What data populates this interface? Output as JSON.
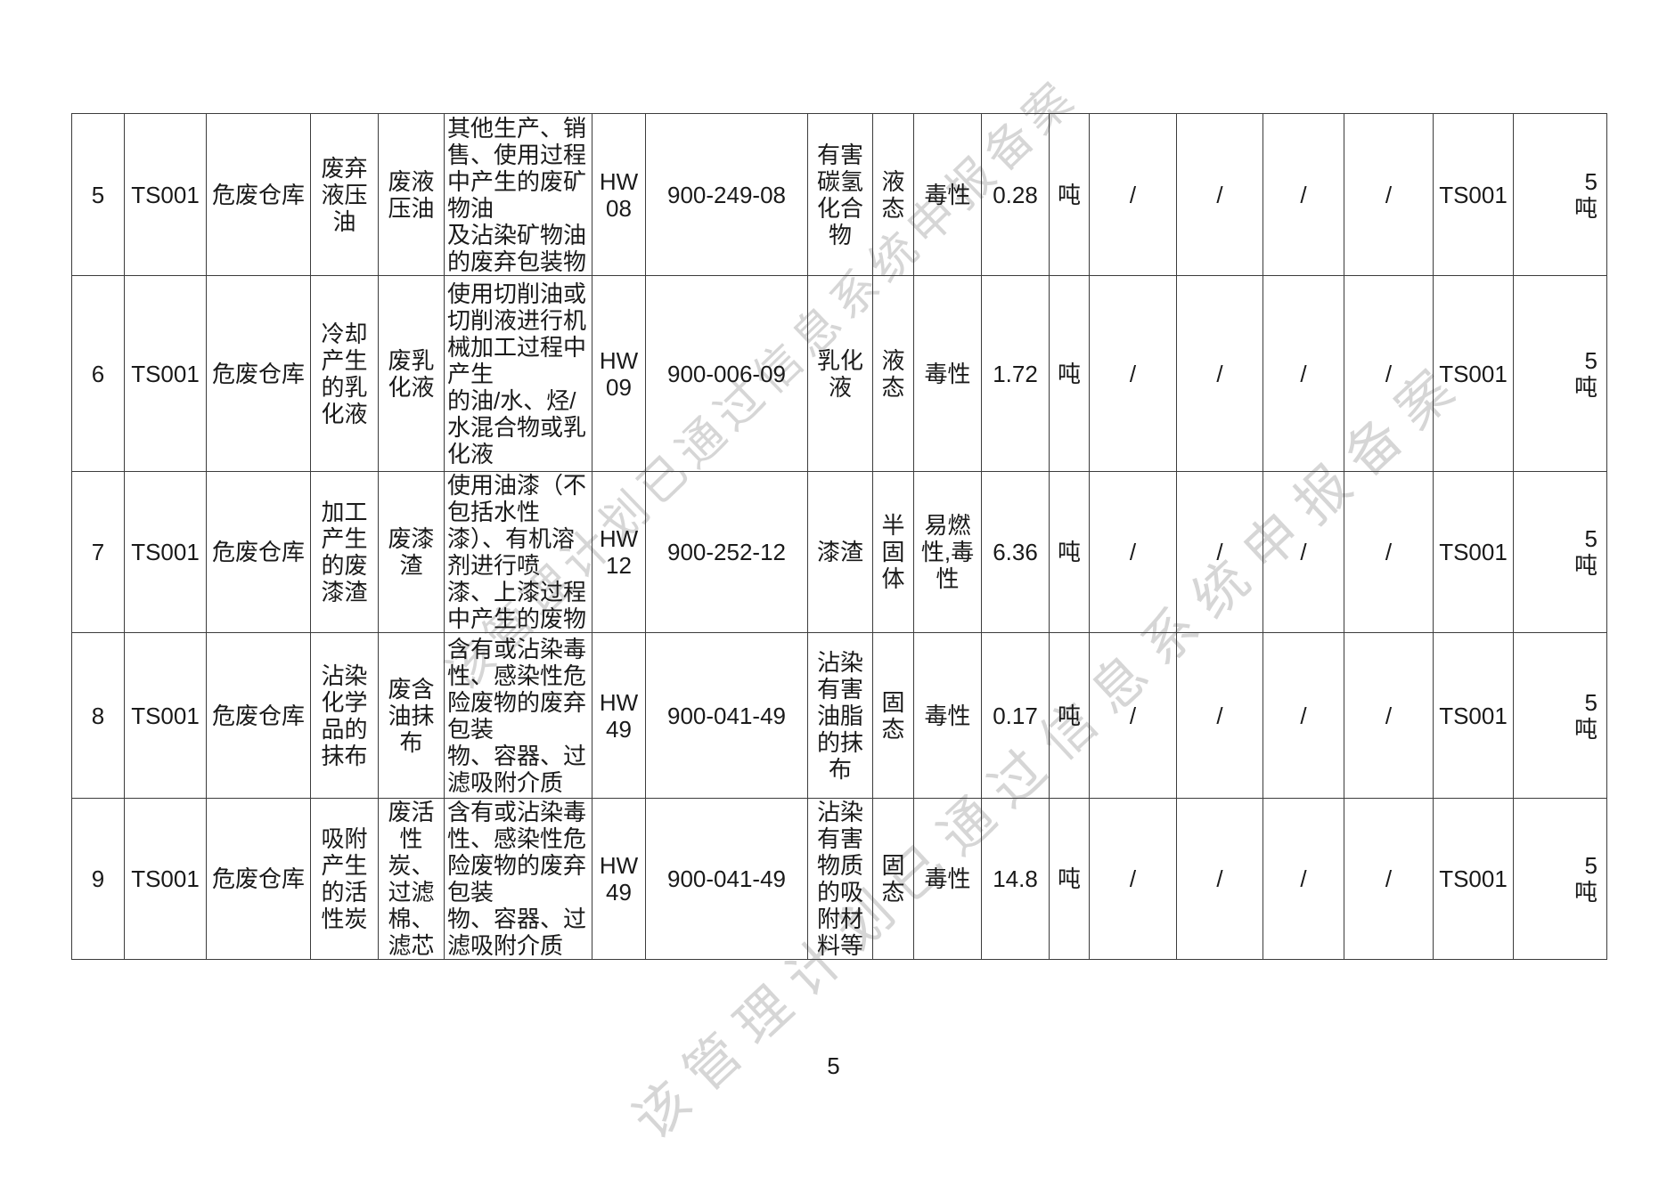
{
  "page": {
    "number": "5",
    "watermark_text": "该管理计划已通过信息系统申报备案"
  },
  "colors": {
    "text": "#1a1a1a",
    "border": "#3c3c3c",
    "watermark": "#d6d6d6",
    "background": "#ffffff"
  },
  "table": {
    "rows": [
      [
        "5",
        "TS001",
        "危废仓库",
        "废弃液压油",
        "废液压油",
        "其他生产、销售、使用过程中产生的废矿物油\n及沾染矿物油的废弃包装物",
        "HW\n08",
        "900-249-08",
        "有害碳氢化合物",
        "液态",
        "毒性",
        "0.28",
        "吨",
        "/",
        "/",
        "/",
        "/",
        "TS001",
        "5\n吨"
      ],
      [
        "6",
        "TS001",
        "危废仓库",
        "冷却产生的乳化液",
        "废乳化液",
        "使用切削油或切削液进行机械加工过程中产生\n的油/水、烃/水混合物或乳化液",
        "HW\n09",
        "900-006-09",
        "乳化液",
        "液态",
        "毒性",
        "1.72",
        "吨",
        "/",
        "/",
        "/",
        "/",
        "TS001",
        "5\n吨"
      ],
      [
        "7",
        "TS001",
        "危废仓库",
        "加工产生的废漆渣",
        "废漆渣",
        "使用油漆（不包括水性\n漆）、有机溶剂进行喷\n漆、上漆过程中产生的废物",
        "HW\n12",
        "900-252-12",
        "漆渣",
        "半固体",
        "易燃性,毒性",
        "6.36",
        "吨",
        "/",
        "/",
        "/",
        "/",
        "TS001",
        "5\n吨"
      ],
      [
        "8",
        "TS001",
        "危废仓库",
        "沾染化学品的抹布",
        "废含油抹布",
        "含有或沾染毒性、感染性危险废物的废弃包装\n物、容器、过滤吸附介质",
        "HW\n49",
        "900-041-49",
        "沾染有害油脂的抹布",
        "固态",
        "毒性",
        "0.17",
        "吨",
        "/",
        "/",
        "/",
        "/",
        "TS001",
        "5\n吨"
      ],
      [
        "9",
        "TS001",
        "危废仓库",
        "吸附产生的活性炭",
        "废活性炭、过滤棉、滤芯",
        "含有或沾染毒性、感染性危险废物的废弃包装\n物、容器、过滤吸附介质",
        "HW\n49",
        "900-041-49",
        "沾染有害物质的吸附材料等",
        "固态",
        "毒性",
        "14.8",
        "吨",
        "/",
        "/",
        "/",
        "/",
        "TS001",
        "5\n吨"
      ]
    ]
  }
}
